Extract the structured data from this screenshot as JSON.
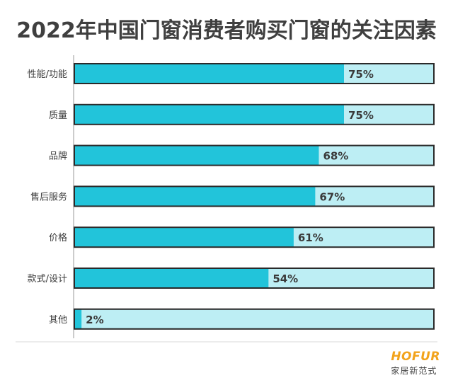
{
  "title": "2022年中国门窗消费者购买门窗的关注因素",
  "logo": {
    "brand": "HOFUR",
    "subtitle": "家居新范式"
  },
  "colors": {
    "fill": "#22c4da",
    "track": "#bdeef4",
    "border": "#2a2a2a",
    "text": "#3a3a3a"
  },
  "chart_data": {
    "type": "bar",
    "orientation": "horizontal",
    "categories": [
      "性能/功能",
      "质量",
      "品牌",
      "售后服务",
      "价格",
      "款式/设计",
      "其他"
    ],
    "values": [
      75,
      75,
      68,
      67,
      61,
      54,
      2
    ],
    "value_labels": [
      "75%",
      "75%",
      "68%",
      "67%",
      "61%",
      "54%",
      "2%"
    ],
    "xlim": [
      0,
      100
    ],
    "title": "2022年中国门窗消费者购买门窗的关注因素",
    "xlabel": "",
    "ylabel": "",
    "grid": false
  }
}
